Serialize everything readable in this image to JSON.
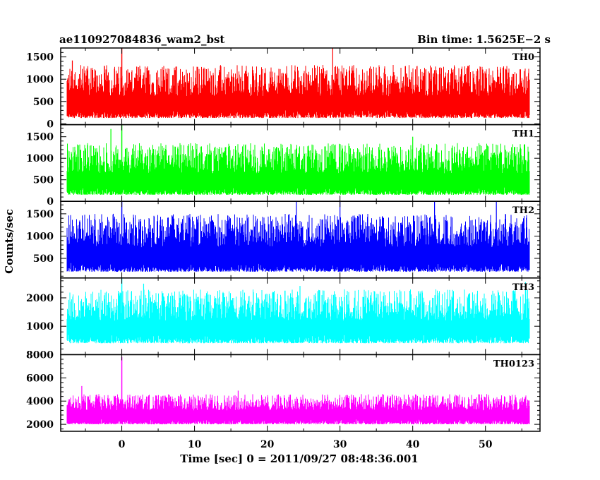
{
  "chart_data": {
    "type": "line",
    "title_left": "ae110927084836_wam2_bst",
    "title_right": "Bin time: 1.5625E−2 s",
    "xlabel": "Time [sec] 0 = 2011/09/27 08:48:36.001",
    "ylabel": "Counts/sec",
    "xlim": [
      -8.4,
      57.5
    ],
    "x_ticks": [
      0,
      10,
      20,
      30,
      40,
      50
    ],
    "x_data_range": [
      -7.5,
      56.0
    ],
    "grid": false,
    "panels": [
      {
        "name": "TH0",
        "color": "#ff0000",
        "ylim": [
          -20,
          1700
        ],
        "y_ticks": [
          0,
          500,
          1000,
          1500
        ],
        "baseline": 130,
        "mean": 620,
        "peak": 1320,
        "spike_at_0": 1700,
        "outliers": [
          [
            29.0,
            1700
          ],
          [
            -6.8,
            1420
          ],
          [
            1.0,
            1150
          ]
        ]
      },
      {
        "name": "TH1",
        "color": "#00ff00",
        "ylim": [
          0,
          1780
        ],
        "y_ticks": [
          0,
          500,
          1000,
          1500
        ],
        "baseline": 150,
        "mean": 650,
        "peak": 1350,
        "spike_at_0": 1780,
        "outliers": [
          [
            -1.5,
            1680
          ],
          [
            40.0,
            1500
          ]
        ]
      },
      {
        "name": "TH2",
        "color": "#0000ff",
        "ylim": [
          60,
          1780
        ],
        "y_ticks": [
          500,
          1000,
          1500
        ],
        "baseline": 200,
        "mean": 750,
        "peak": 1500,
        "spike_at_0": 1780,
        "outliers": [
          [
            30.0,
            1780
          ],
          [
            24.0,
            1780
          ],
          [
            51.5,
            1780
          ],
          [
            43.0,
            1780
          ]
        ]
      },
      {
        "name": "TH3",
        "color": "#00ffff",
        "ylim": [
          0,
          2700
        ],
        "y_ticks": [
          1000,
          2000
        ],
        "baseline": 400,
        "mean": 1200,
        "peak": 2300,
        "spike_at_0": 2700,
        "outliers": [
          [
            3.0,
            2500
          ],
          [
            24.5,
            2420
          ],
          [
            55.5,
            2550
          ]
        ]
      },
      {
        "name": "TH0123",
        "color": "#ff00ff",
        "ylim": [
          1400,
          8000
        ],
        "y_ticks": [
          2000,
          4000,
          6000,
          8000
        ],
        "baseline": 2000,
        "mean": 3200,
        "peak": 4600,
        "spike_at_0": 7800,
        "outliers": [
          [
            -5.5,
            5300
          ],
          [
            16.0,
            4900
          ]
        ]
      }
    ]
  }
}
